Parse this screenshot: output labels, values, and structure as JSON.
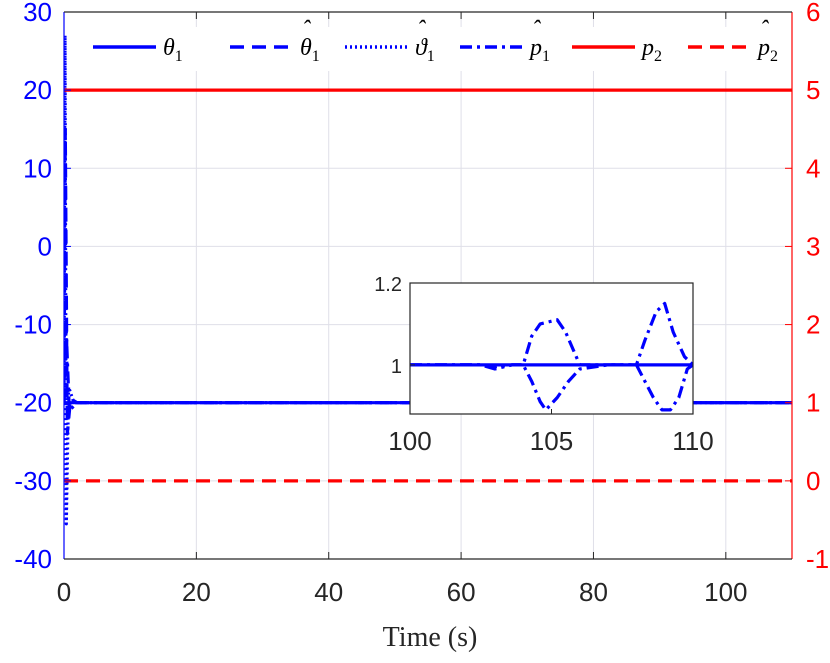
{
  "chart_data": {
    "type": "line",
    "title": "",
    "xlabel": "Time (s)",
    "ylabel_left": "",
    "ylabel_right": "",
    "xlim": [
      0,
      110
    ],
    "ylim_left": [
      -40,
      30
    ],
    "ylim_right": [
      -1,
      6
    ],
    "grid": true,
    "legend_placement": "top",
    "x_ticks": [
      "0",
      "20",
      "40",
      "60",
      "80",
      "100"
    ],
    "y_left_ticks": [
      "-40",
      "-30",
      "-20",
      "-10",
      "0",
      "10",
      "20",
      "30"
    ],
    "y_right_ticks": [
      "-1",
      "0",
      "1",
      "2",
      "3",
      "4",
      "5",
      "6"
    ],
    "colors": {
      "left_axis": "#0000ff",
      "right_axis": "#ff0000",
      "series_blue": "#0000ff",
      "series_red": "#ff0000"
    },
    "series": [
      {
        "name": "θ₁",
        "name_base": "θ",
        "name_sub": "1",
        "hat": false,
        "axis": "right",
        "style": "solid",
        "color": "#0000ff",
        "x": [
          0,
          110
        ],
        "y": [
          1,
          1
        ]
      },
      {
        "name": "θ̂₁",
        "name_base": "θ",
        "name_sub": "1",
        "hat": true,
        "axis": "right",
        "style": "dash",
        "color": "#0000ff",
        "x": [
          0,
          0.2,
          0.5,
          1,
          2,
          110
        ],
        "y": [
          1,
          4.5,
          0.6,
          1.05,
          1,
          1
        ]
      },
      {
        "name": "ϑ̂₁",
        "name_base": "ϑ",
        "name_sub": "1",
        "hat": true,
        "axis": "right",
        "style": "dot",
        "color": "#0000ff",
        "x": [
          0,
          0.15,
          0.35,
          0.7,
          1.5,
          110
        ],
        "y": [
          1,
          5.7,
          -0.55,
          1.2,
          1,
          1
        ]
      },
      {
        "name": "p̂₁",
        "name_base": "p",
        "name_sub": "1",
        "hat": true,
        "axis": "right",
        "style": "dashdot",
        "color": "#0000ff",
        "x": [
          0,
          0.3,
          0.8,
          2,
          110
        ],
        "y": [
          1,
          2,
          0.9,
          1,
          1
        ]
      },
      {
        "name": "p₂",
        "name_base": "p",
        "name_sub": "2",
        "hat": false,
        "axis": "right",
        "style": "solid",
        "color": "#ff0000",
        "x": [
          0,
          110
        ],
        "y": [
          5,
          5
        ]
      },
      {
        "name": "p̂₂",
        "name_base": "p",
        "name_sub": "2",
        "hat": true,
        "axis": "right",
        "style": "dash",
        "color": "#ff0000",
        "x": [
          0,
          110
        ],
        "y": [
          0,
          0
        ]
      }
    ],
    "inset": {
      "xlim": [
        100,
        110
      ],
      "ylim": [
        0.88,
        1.2
      ],
      "x_ticks": [
        "100",
        "105",
        "110"
      ],
      "y_ticks": [
        "1",
        "1.2"
      ],
      "series": [
        {
          "style": "solid",
          "color": "#0000ff",
          "x": [
            100,
            110
          ],
          "y": [
            1,
            1
          ]
        },
        {
          "style": "dashdot",
          "color": "#0000ff",
          "x": [
            100,
            102.5,
            103,
            103.6,
            104,
            104.3,
            104.6,
            105.2,
            105.5,
            106,
            107,
            108,
            108.3,
            108.7,
            109,
            109.3,
            109.7,
            110
          ],
          "y": [
            1,
            1,
            0.995,
            1,
            1,
            1.07,
            1.1,
            1.11,
            1.08,
            1.0,
            1.0,
            1.0,
            1.06,
            1.13,
            1.15,
            1.08,
            1.02,
            1
          ]
        },
        {
          "style": "dashdot",
          "color": "#0000ff",
          "x": [
            100,
            102.5,
            103,
            103.6,
            104,
            104.3,
            104.6,
            104.8,
            105.2,
            105.6,
            106,
            107,
            108,
            108.3,
            108.6,
            108.9,
            109.2,
            109.5,
            109.8,
            110
          ],
          "y": [
            1,
            1,
            0.99,
            1,
            1,
            0.96,
            0.91,
            0.89,
            0.92,
            0.96,
            0.99,
            1.0,
            1.0,
            0.96,
            0.92,
            0.89,
            0.89,
            0.92,
            0.99,
            1
          ]
        }
      ]
    }
  }
}
